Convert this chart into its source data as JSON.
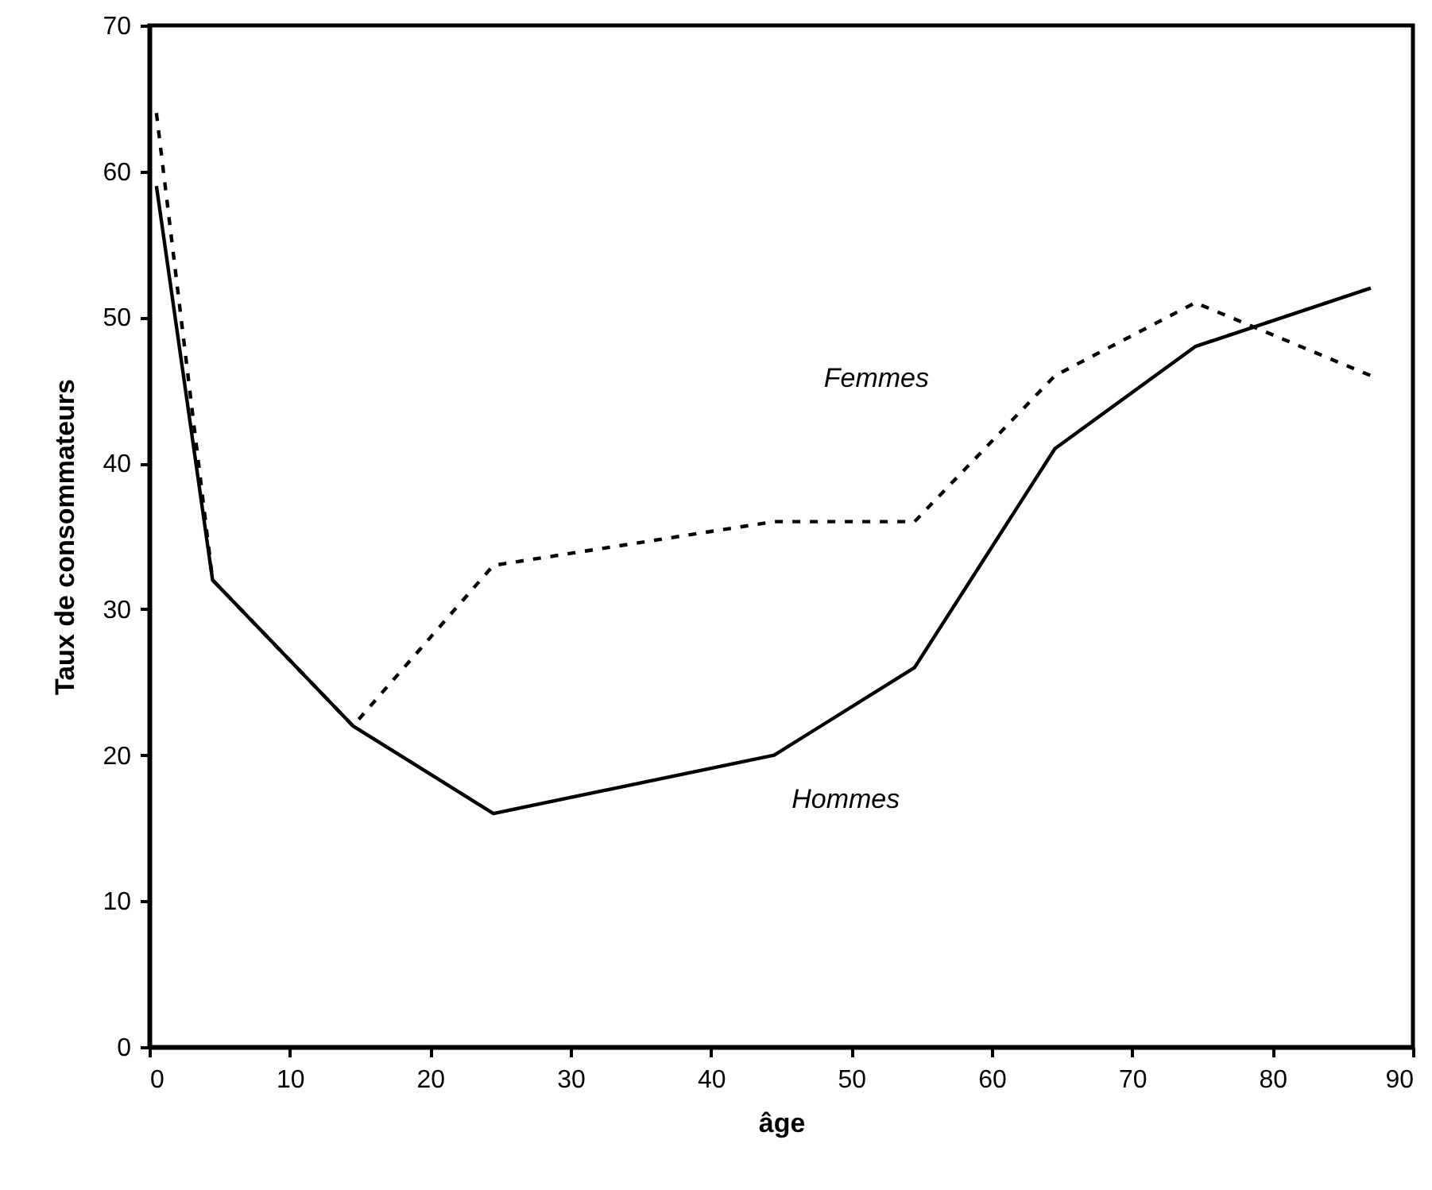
{
  "chart_data": {
    "type": "line",
    "xlabel": "âge",
    "ylabel": "Taux de consommateurs",
    "xlim": [
      0,
      90
    ],
    "xticks": [
      0,
      10,
      20,
      30,
      40,
      50,
      60,
      70,
      80,
      90
    ],
    "ylim": [
      0,
      70
    ],
    "yticks": [
      0,
      10,
      20,
      30,
      40,
      50,
      60,
      70
    ],
    "grid": false,
    "marker": "none",
    "x": [
      0.5,
      4.5,
      14.5,
      24.5,
      44.5,
      54.5,
      64.5,
      74.5,
      87
    ],
    "series": [
      {
        "name": "Hommes",
        "color": "#000000",
        "line_style": "solid",
        "values": [
          59,
          32,
          22,
          16,
          20,
          26,
          41,
          48,
          52
        ]
      },
      {
        "name": "Femmes",
        "color": "#000000",
        "line_style": "dashed",
        "values": [
          64,
          32,
          22,
          33,
          36,
          36,
          46,
          51,
          46
        ]
      }
    ]
  }
}
